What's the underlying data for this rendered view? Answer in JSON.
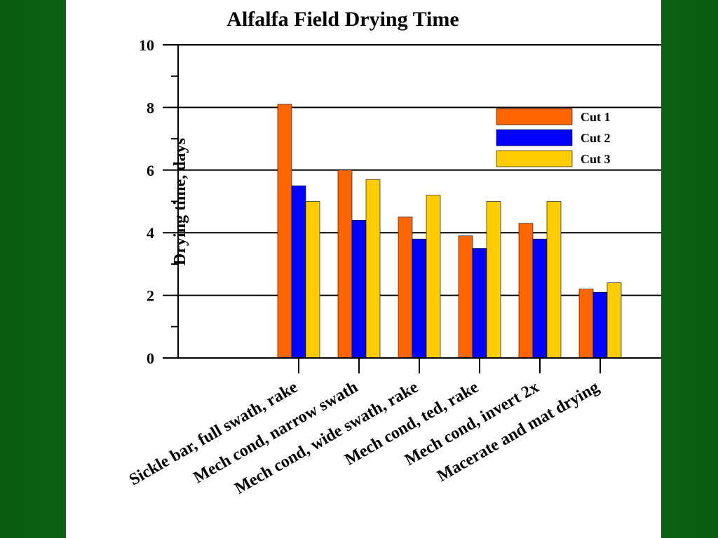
{
  "chart_data": {
    "type": "bar",
    "title": "Alfalfa Field Drying Time",
    "xlabel": "",
    "ylabel": "Drying time, days",
    "ylim": [
      0,
      10
    ],
    "yticks": [
      0,
      2,
      4,
      6,
      8,
      10
    ],
    "grid": true,
    "legend_position": "top-right",
    "categories": [
      "Sickle bar, full swath, rake",
      "Mech cond, narrow swath",
      "Mech cond, wide swath, rake",
      "Mech cond, ted, rake",
      "Mech cond, invert 2x",
      "Macerate and mat drying"
    ],
    "series": [
      {
        "name": "Cut 1",
        "color": "#ff6600",
        "values": [
          8.1,
          6.0,
          4.5,
          3.9,
          4.3,
          2.2
        ]
      },
      {
        "name": "Cut 2",
        "color": "#0000ff",
        "values": [
          5.5,
          4.4,
          3.8,
          3.5,
          3.8,
          2.1
        ]
      },
      {
        "name": "Cut 3",
        "color": "#ffcc00",
        "values": [
          5.0,
          5.7,
          5.2,
          5.0,
          5.0,
          2.4
        ]
      }
    ]
  }
}
